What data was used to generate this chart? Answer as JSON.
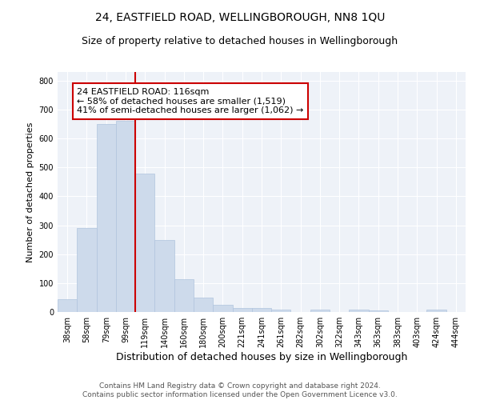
{
  "title": "24, EASTFIELD ROAD, WELLINGBOROUGH, NN8 1QU",
  "subtitle": "Size of property relative to detached houses in Wellingborough",
  "xlabel": "Distribution of detached houses by size in Wellingborough",
  "ylabel": "Number of detached properties",
  "categories": [
    "38sqm",
    "58sqm",
    "79sqm",
    "99sqm",
    "119sqm",
    "140sqm",
    "160sqm",
    "180sqm",
    "200sqm",
    "221sqm",
    "241sqm",
    "261sqm",
    "282sqm",
    "302sqm",
    "322sqm",
    "343sqm",
    "363sqm",
    "383sqm",
    "403sqm",
    "424sqm",
    "444sqm"
  ],
  "values": [
    45,
    290,
    650,
    660,
    478,
    248,
    113,
    50,
    25,
    15,
    14,
    8,
    0,
    7,
    0,
    7,
    5,
    0,
    0,
    7,
    0
  ],
  "bar_color": "#cddaeb",
  "bar_edge_color": "#b0c4de",
  "vline_x_idx": 3.5,
  "vline_color": "#cc0000",
  "annotation_line1": "24 EASTFIELD ROAD: 116sqm",
  "annotation_line2": "← 58% of detached houses are smaller (1,519)",
  "annotation_line3": "41% of semi-detached houses are larger (1,062) →",
  "annotation_box_color": "white",
  "annotation_box_edge": "#cc0000",
  "ylim": [
    0,
    830
  ],
  "yticks": [
    0,
    100,
    200,
    300,
    400,
    500,
    600,
    700,
    800
  ],
  "background_color": "#eef2f8",
  "grid_color": "white",
  "footer": "Contains HM Land Registry data © Crown copyright and database right 2024.\nContains public sector information licensed under the Open Government Licence v3.0.",
  "title_fontsize": 10,
  "subtitle_fontsize": 9,
  "xlabel_fontsize": 9,
  "ylabel_fontsize": 8,
  "tick_fontsize": 7,
  "annotation_fontsize": 8,
  "footer_fontsize": 6.5
}
